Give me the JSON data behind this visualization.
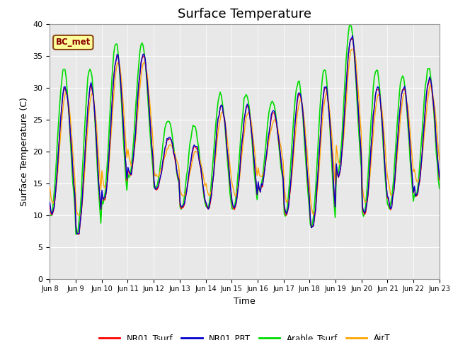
{
  "title": "Surface Temperature",
  "ylabel": "Surface Temperature (C)",
  "xlabel": "Time",
  "ylim": [
    0,
    40
  ],
  "yticks": [
    0,
    5,
    10,
    15,
    20,
    25,
    30,
    35,
    40
  ],
  "n_days": 15,
  "n_per_day": 24,
  "xtick_labels": [
    "Jun 8",
    "Jun 9",
    "Jun 10",
    "Jun 11",
    "Jun 12",
    "Jun 13",
    "Jun 14",
    "Jun 15",
    "Jun 16",
    "Jun 17",
    "Jun 18",
    "Jun 19",
    "Jun 20",
    "Jun 21",
    "Jun 22",
    "Jun 23"
  ],
  "line_colors": {
    "NR01_Tsurf": "#ff0000",
    "NR01_PRT": "#0000cd",
    "Arable_Tsurf": "#00dd00",
    "AirT": "#ffa500"
  },
  "bc_met_label": "BC_met",
  "bc_met_box_color": "#ffff99",
  "bc_met_text_color": "#8b0000",
  "bc_met_border_color": "#8b4513",
  "background_color": "#e8e8e8",
  "title_fontsize": 13,
  "axis_label_fontsize": 9,
  "tick_fontsize": 8,
  "day_mins": [
    10,
    7,
    12,
    16,
    14,
    11,
    11,
    11,
    14,
    10,
    8,
    16,
    10,
    11,
    13
  ],
  "day_maxs": [
    30,
    30,
    35,
    35,
    22,
    21,
    27,
    27,
    26,
    29,
    30,
    38,
    30,
    30,
    31
  ],
  "green_extra_amp": [
    3,
    3,
    2,
    2,
    3,
    3,
    2,
    2,
    2,
    2,
    3,
    2,
    3,
    2,
    2
  ],
  "air_damp": 0.85,
  "linewidth_main": 1.0,
  "linewidth_green": 1.2
}
